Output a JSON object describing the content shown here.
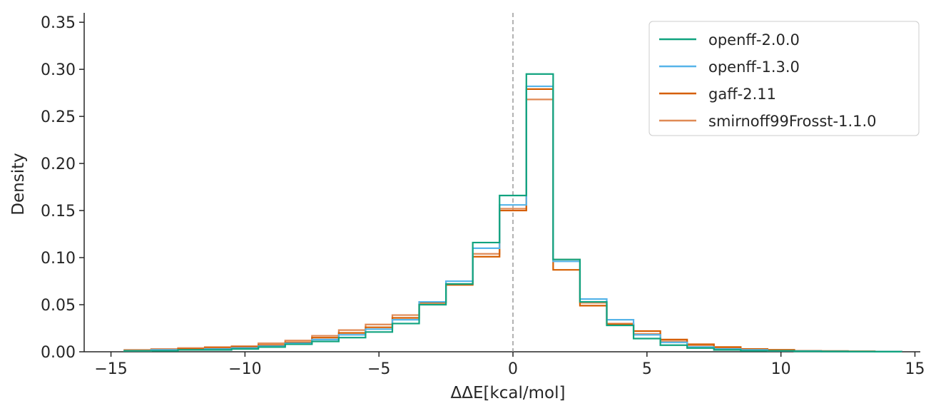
{
  "chart_data": {
    "type": "histogram-step",
    "xlabel": "ΔΔE[kcal/mol]",
    "ylabel": "Density",
    "xlim": [
      -16,
      15.2
    ],
    "ylim": [
      0,
      0.36
    ],
    "xticks": [
      -15,
      -10,
      -5,
      0,
      5,
      10,
      15
    ],
    "xtick_labels": [
      "−15",
      "−10",
      "−5",
      "0",
      "5",
      "10",
      "15"
    ],
    "yticks": [
      0.0,
      0.05,
      0.1,
      0.15,
      0.2,
      0.25,
      0.3,
      0.35
    ],
    "ytick_labels": [
      "0.00",
      "0.05",
      "0.10",
      "0.15",
      "0.20",
      "0.25",
      "0.30",
      "0.35"
    ],
    "bin_edges": [
      -14.5,
      -13.5,
      -12.5,
      -11.5,
      -10.5,
      -9.5,
      -8.5,
      -7.5,
      -6.5,
      -5.5,
      -4.5,
      -3.5,
      -2.5,
      -1.5,
      -0.5,
      0.5,
      1.5,
      2.5,
      3.5,
      4.5,
      5.5,
      6.5,
      7.5,
      8.5,
      9.5,
      10.5,
      11.5,
      12.5,
      13.5,
      14.5
    ],
    "vline": {
      "x": 0,
      "style": "dashed",
      "color": "#999999"
    },
    "legend_position": "top-right",
    "series": [
      {
        "name": "openff-2.0.0",
        "color": "#10a37f",
        "values": [
          0.001,
          0.001,
          0.002,
          0.002,
          0.003,
          0.005,
          0.008,
          0.011,
          0.015,
          0.021,
          0.03,
          0.05,
          0.072,
          0.116,
          0.166,
          0.295,
          0.098,
          0.053,
          0.028,
          0.014,
          0.007,
          0.004,
          0.002,
          0.001,
          0.001,
          0.0005,
          0.0003,
          0.0002,
          0.0001
        ]
      },
      {
        "name": "openff-1.3.0",
        "color": "#56b4e9",
        "values": [
          0.001,
          0.002,
          0.002,
          0.003,
          0.004,
          0.006,
          0.009,
          0.013,
          0.018,
          0.024,
          0.034,
          0.053,
          0.075,
          0.11,
          0.156,
          0.282,
          0.096,
          0.056,
          0.034,
          0.018,
          0.01,
          0.005,
          0.003,
          0.002,
          0.001,
          0.0008,
          0.0005,
          0.0003,
          0.0002
        ]
      },
      {
        "name": "gaff-2.11",
        "color": "#d55e00",
        "values": [
          0.001,
          0.002,
          0.003,
          0.004,
          0.005,
          0.007,
          0.01,
          0.015,
          0.02,
          0.026,
          0.036,
          0.052,
          0.071,
          0.101,
          0.15,
          0.279,
          0.087,
          0.049,
          0.029,
          0.022,
          0.013,
          0.008,
          0.005,
          0.003,
          0.002,
          0.001,
          0.0008,
          0.0005,
          0.0003
        ]
      },
      {
        "name": "smirnoff99Frosst-1.1.0",
        "color": "#e08a55",
        "values": [
          0.002,
          0.003,
          0.004,
          0.005,
          0.006,
          0.009,
          0.012,
          0.017,
          0.023,
          0.029,
          0.039,
          0.053,
          0.072,
          0.104,
          0.152,
          0.268,
          0.098,
          0.052,
          0.03,
          0.019,
          0.011,
          0.007,
          0.004,
          0.003,
          0.002,
          0.001,
          0.0008,
          0.0005,
          0.0003
        ]
      }
    ]
  }
}
